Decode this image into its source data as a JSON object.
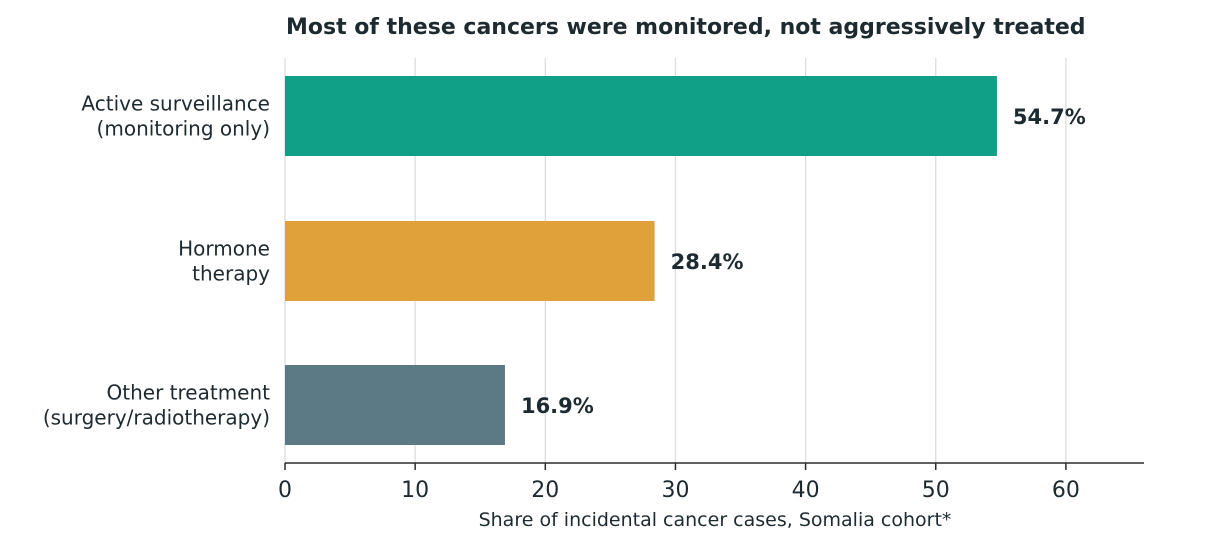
{
  "chart_data": {
    "type": "bar",
    "orientation": "horizontal",
    "title": "Most of these cancers were monitored, not aggressively treated",
    "xlabel": "Share of incidental cancer cases, Somalia cohort*",
    "ylabel": "",
    "xlim": [
      0,
      66
    ],
    "xticks": [
      0,
      10,
      20,
      30,
      40,
      50,
      60
    ],
    "grid": "vertical",
    "categories": [
      [
        "Active surveillance",
        "(monitoring only)"
      ],
      [
        "Hormone",
        "therapy"
      ],
      [
        "Other treatment",
        "(surgery/radiotherapy)"
      ]
    ],
    "values": [
      54.7,
      28.4,
      16.9
    ],
    "value_labels": [
      "54.7%",
      "28.4%",
      "16.9%"
    ],
    "colors": [
      "#10a087",
      "#e0a13a",
      "#5c7a86"
    ]
  },
  "colors": {
    "text": "#1d2a30",
    "grid": "#dddddd",
    "axis": "#2b2b2b"
  }
}
